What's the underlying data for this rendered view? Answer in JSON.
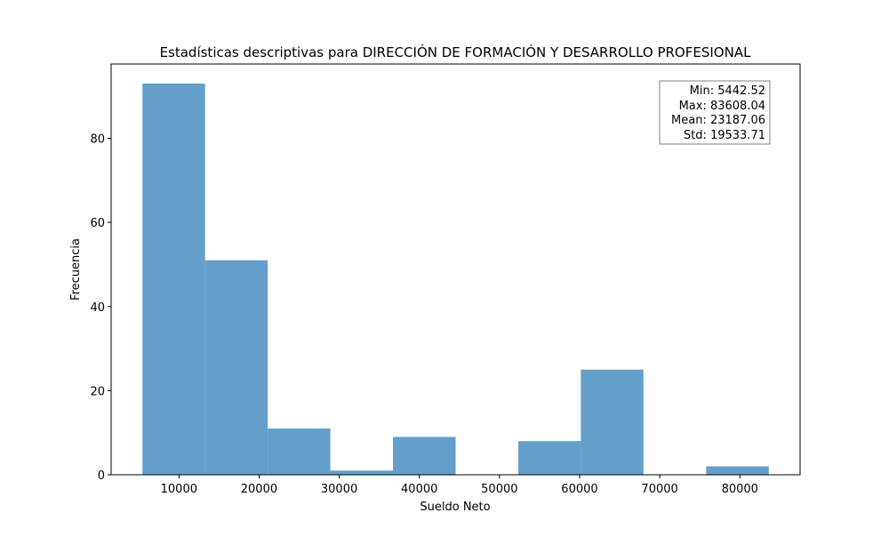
{
  "chart_data": {
    "type": "bar",
    "title": "Estadísticas descriptivas para DIRECCIÓN DE FORMACIÓN Y DESARROLLO PROFESIONAL",
    "xlabel": "Sueldo Neto",
    "ylabel": "Frecuencia",
    "bin_edges": [
      5442.52,
      13259.07,
      21075.62,
      28892.18,
      36708.73,
      44525.28,
      52341.83,
      60158.38,
      67974.94,
      75791.49,
      83608.04
    ],
    "counts": [
      93,
      51,
      11,
      1,
      9,
      0,
      8,
      25,
      0,
      2
    ],
    "xlim": [
      1534.25,
      87516.31
    ],
    "ylim": [
      0,
      97.65
    ],
    "x_ticks": [
      10000,
      20000,
      30000,
      40000,
      50000,
      60000,
      70000,
      80000
    ],
    "y_ticks": [
      0,
      20,
      40,
      60,
      80
    ],
    "bar_color": "#639fca",
    "grid": false,
    "legend": "none",
    "stats_box": {
      "lines": [
        "Min: 5442.52",
        "Max: 83608.04",
        "Mean: 23187.06",
        "Std: 19533.71"
      ],
      "placement": "top-right"
    }
  }
}
